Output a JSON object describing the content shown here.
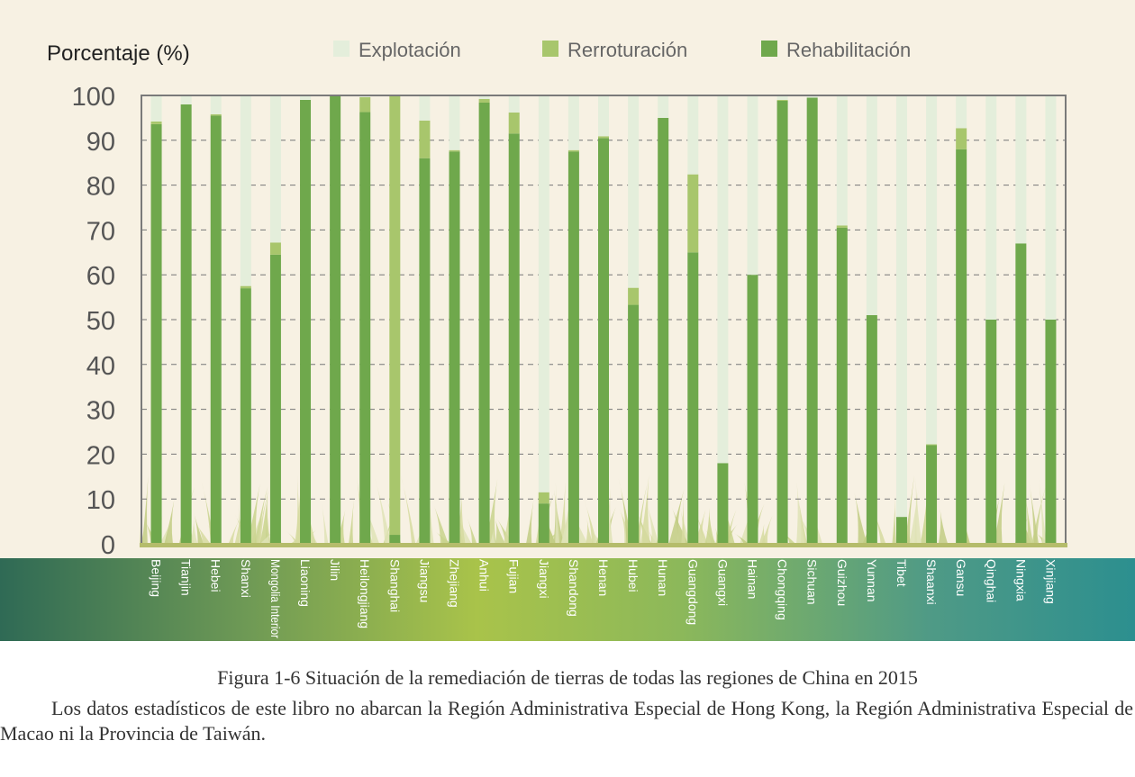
{
  "chart_data": {
    "type": "bar",
    "stacked": true,
    "ylabel": "Porcentaje (%)",
    "ylim": [
      0,
      100
    ],
    "yticks": [
      0,
      10,
      20,
      30,
      40,
      50,
      60,
      70,
      80,
      90,
      100
    ],
    "grid": true,
    "legend_position": "top",
    "categories": [
      "Beijing",
      "Tianjin",
      "Hebei",
      "Shanxi",
      "Mongolia Interior",
      "Liaoning",
      "Jilin",
      "Heilongjiang",
      "Shanghai",
      "Jiangsu",
      "Zhejiang",
      "Anhui",
      "Fujian",
      "Jiangxi",
      "Shandong",
      "Henan",
      "Hubei",
      "Hunan",
      "Guangdong",
      "Guangxi",
      "Hainan",
      "Chongqing",
      "Sichuan",
      "Guizhou",
      "Yunnan",
      "Tibet",
      "Shaanxi",
      "Gansu",
      "Qinghai",
      "Ningxia",
      "Xinjiang"
    ],
    "series": [
      {
        "name": "Rehabilitación",
        "color": "#6fa84c",
        "values": [
          93.6,
          98.0,
          95.5,
          57.0,
          64.5,
          99.0,
          100.0,
          96.3,
          2.0,
          86.0,
          87.5,
          98.4,
          91.5,
          9.0,
          87.5,
          90.5,
          53.3,
          95.0,
          65.0,
          18.0,
          60.0,
          98.8,
          99.5,
          70.5,
          51.0,
          6.0,
          22.0,
          88.0,
          50.0,
          67.0,
          50.0
        ]
      },
      {
        "name": "Rerroturación",
        "color": "#a8c66c",
        "values": [
          0.6,
          0.0,
          0.3,
          0.5,
          2.7,
          0.0,
          0.0,
          3.3,
          98.0,
          8.4,
          0.3,
          0.8,
          4.7,
          2.5,
          0.3,
          0.4,
          3.8,
          0.0,
          17.4,
          0.0,
          0.0,
          0.2,
          0.0,
          0.5,
          0.0,
          0.0,
          0.2,
          4.7,
          0.0,
          0.0,
          0.0
        ]
      },
      {
        "name": "Explotación",
        "color": "#e4eedb",
        "values": [
          5.8,
          2.0,
          4.2,
          42.5,
          32.8,
          1.0,
          0.0,
          0.4,
          0.0,
          5.6,
          12.2,
          0.8,
          3.8,
          88.5,
          12.2,
          9.1,
          42.9,
          5.0,
          17.6,
          82.0,
          40.0,
          1.0,
          0.5,
          29.0,
          49.0,
          94.0,
          77.8,
          7.3,
          50.0,
          33.0,
          50.0
        ]
      }
    ]
  },
  "legend": {
    "items": [
      {
        "label": "Explotación",
        "color": "#e4eedb"
      },
      {
        "label": "Rerroturación",
        "color": "#a8c66c"
      },
      {
        "label": "Rehabilitación",
        "color": "#6fa84c"
      }
    ]
  },
  "caption": {
    "title": "Figura 1-6  Situación de la remediación de tierras de todas las regiones de China en 2015",
    "note": "Los datos estadísticos de este libro no abarcan la Región Administrativa Especial de Hong Kong, la Región Administrativa Especial de Macao ni la Provincia de Taiwán."
  }
}
